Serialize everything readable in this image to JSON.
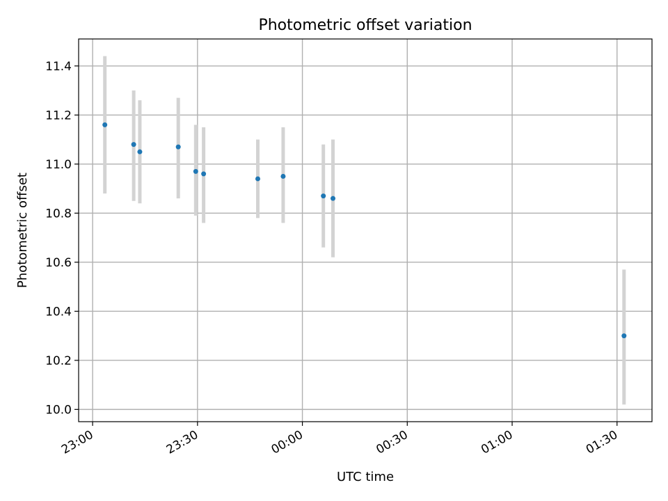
{
  "chart_data": {
    "type": "scatter",
    "title": "Photometric offset variation",
    "xlabel": "UTC time",
    "ylabel": "Photometric offset",
    "x_tick_labels": [
      "23:00",
      "23:30",
      "00:00",
      "00:30",
      "01:00",
      "01:30"
    ],
    "y_tick_labels": [
      "10.0",
      "10.2",
      "10.4",
      "10.6",
      "10.8",
      "11.0",
      "11.2",
      "11.4"
    ],
    "xlim": [
      "22:56",
      "01:40"
    ],
    "ylim": [
      9.95,
      11.51
    ],
    "grid": true,
    "legend": "none",
    "series": [
      {
        "color": "#1f77b4",
        "errorbar_color": "#d3d3d3",
        "points": [
          {
            "x": "23:03:30",
            "y": 11.16,
            "yerr_low": 10.88,
            "yerr_high": 11.44
          },
          {
            "x": "23:11:45",
            "y": 11.08,
            "yerr_low": 10.85,
            "yerr_high": 11.3
          },
          {
            "x": "23:13:30",
            "y": 11.05,
            "yerr_low": 10.84,
            "yerr_high": 11.26
          },
          {
            "x": "23:24:30",
            "y": 11.07,
            "yerr_low": 10.86,
            "yerr_high": 11.27
          },
          {
            "x": "23:29:30",
            "y": 10.97,
            "yerr_low": 10.79,
            "yerr_high": 11.16
          },
          {
            "x": "23:31:45",
            "y": 10.96,
            "yerr_low": 10.76,
            "yerr_high": 11.15
          },
          {
            "x": "23:47:15",
            "y": 10.94,
            "yerr_low": 10.78,
            "yerr_high": 11.1
          },
          {
            "x": "23:54:30",
            "y": 10.95,
            "yerr_low": 10.76,
            "yerr_high": 11.15
          },
          {
            "x": "00:06:00",
            "y": 10.87,
            "yerr_low": 10.66,
            "yerr_high": 11.08
          },
          {
            "x": "00:08:45",
            "y": 10.86,
            "yerr_low": 10.62,
            "yerr_high": 11.1
          },
          {
            "x": "01:32:00",
            "y": 10.3,
            "yerr_low": 10.02,
            "yerr_high": 10.57
          }
        ]
      }
    ]
  }
}
